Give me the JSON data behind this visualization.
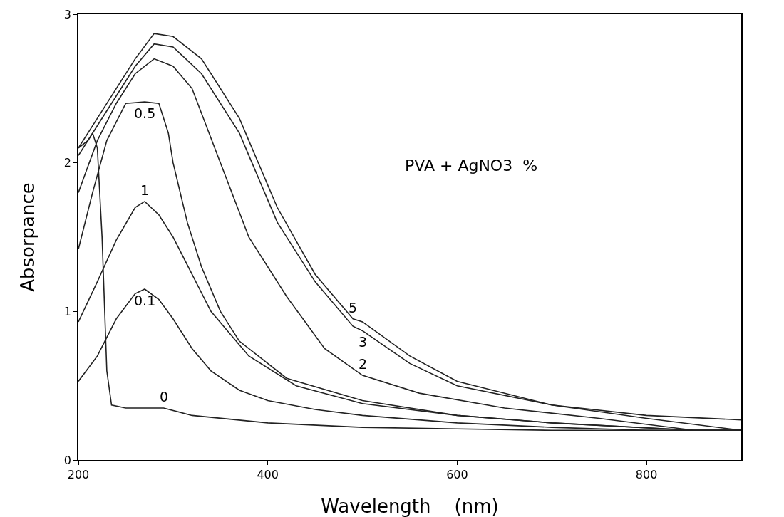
{
  "chart_data": {
    "type": "line",
    "xlabel": "Wavelength    (nm)",
    "ylabel": "Absorpance",
    "xlim": [
      200,
      900
    ],
    "ylim": [
      0,
      3
    ],
    "xticks": [
      200,
      400,
      600,
      800
    ],
    "yticks": [
      0,
      1,
      2,
      3
    ],
    "grid": false,
    "marker": "none",
    "line_style": "solid",
    "series": [
      {
        "color": "#222222",
        "x": [
          200,
          210,
          215,
          220,
          225,
          230,
          235,
          250,
          290,
          320,
          400,
          500,
          600,
          700,
          800,
          900
        ],
        "values": [
          2.1,
          2.15,
          2.2,
          2.1,
          1.5,
          0.6,
          0.37,
          0.35,
          0.35,
          0.3,
          0.25,
          0.22,
          0.21,
          0.2,
          0.2,
          0.2
        ]
      },
      {
        "color": "#222222",
        "x": [
          200,
          220,
          240,
          260,
          270,
          285,
          300,
          320,
          340,
          370,
          400,
          450,
          500,
          600,
          700,
          800,
          900
        ],
        "values": [
          0.53,
          0.7,
          0.95,
          1.12,
          1.15,
          1.08,
          0.95,
          0.75,
          0.6,
          0.47,
          0.4,
          0.34,
          0.3,
          0.25,
          0.22,
          0.2,
          0.2
        ]
      },
      {
        "color": "#222222",
        "x": [
          200,
          220,
          240,
          260,
          270,
          285,
          300,
          320,
          340,
          380,
          430,
          500,
          600,
          700,
          850,
          900
        ],
        "values": [
          0.93,
          1.2,
          1.48,
          1.7,
          1.74,
          1.65,
          1.5,
          1.25,
          1.0,
          0.7,
          0.5,
          0.38,
          0.3,
          0.25,
          0.2,
          0.2
        ]
      },
      {
        "color": "#222222",
        "x": [
          200,
          215,
          230,
          250,
          270,
          285,
          295,
          300,
          315,
          330,
          350,
          370,
          420,
          500,
          600,
          700,
          850,
          900
        ],
        "values": [
          1.42,
          1.8,
          2.15,
          2.4,
          2.41,
          2.4,
          2.2,
          2.0,
          1.6,
          1.3,
          1.0,
          0.8,
          0.55,
          0.4,
          0.3,
          0.25,
          0.2,
          0.2
        ]
      },
      {
        "color": "#222222",
        "x": [
          200,
          220,
          240,
          260,
          280,
          300,
          320,
          350,
          380,
          420,
          460,
          500,
          560,
          650,
          750,
          850,
          900
        ],
        "values": [
          1.8,
          2.15,
          2.4,
          2.6,
          2.7,
          2.65,
          2.5,
          2.0,
          1.5,
          1.1,
          0.75,
          0.57,
          0.45,
          0.35,
          0.28,
          0.2,
          0.2
        ]
      },
      {
        "color": "#222222",
        "x": [
          200,
          220,
          240,
          260,
          280,
          300,
          330,
          370,
          410,
          450,
          490,
          500,
          550,
          600,
          700,
          800,
          900
        ],
        "values": [
          2.05,
          2.25,
          2.45,
          2.65,
          2.8,
          2.78,
          2.6,
          2.2,
          1.6,
          1.2,
          0.9,
          0.87,
          0.65,
          0.5,
          0.37,
          0.3,
          0.27
        ]
      },
      {
        "color": "#222222",
        "x": [
          200,
          220,
          240,
          260,
          280,
          300,
          330,
          370,
          410,
          450,
          490,
          500,
          550,
          600,
          700,
          800,
          900
        ],
        "values": [
          2.1,
          2.3,
          2.5,
          2.7,
          2.87,
          2.85,
          2.7,
          2.3,
          1.7,
          1.25,
          0.95,
          0.93,
          0.7,
          0.53,
          0.37,
          0.28,
          0.2
        ]
      }
    ],
    "annotations": [
      {
        "text": "0",
        "x": 290,
        "y": 0.35
      },
      {
        "text": "0.1",
        "x": 270,
        "y": 1.15
      },
      {
        "text": "1",
        "x": 270,
        "y": 1.74
      },
      {
        "text": "0.5",
        "x": 270,
        "y": 2.41
      },
      {
        "text": "2",
        "x": 500,
        "y": 0.57
      },
      {
        "text": "3",
        "x": 500,
        "y": 0.87
      },
      {
        "text": "5",
        "x": 490,
        "y": 0.95
      },
      "PVA + AgNO3  %"
    ]
  }
}
